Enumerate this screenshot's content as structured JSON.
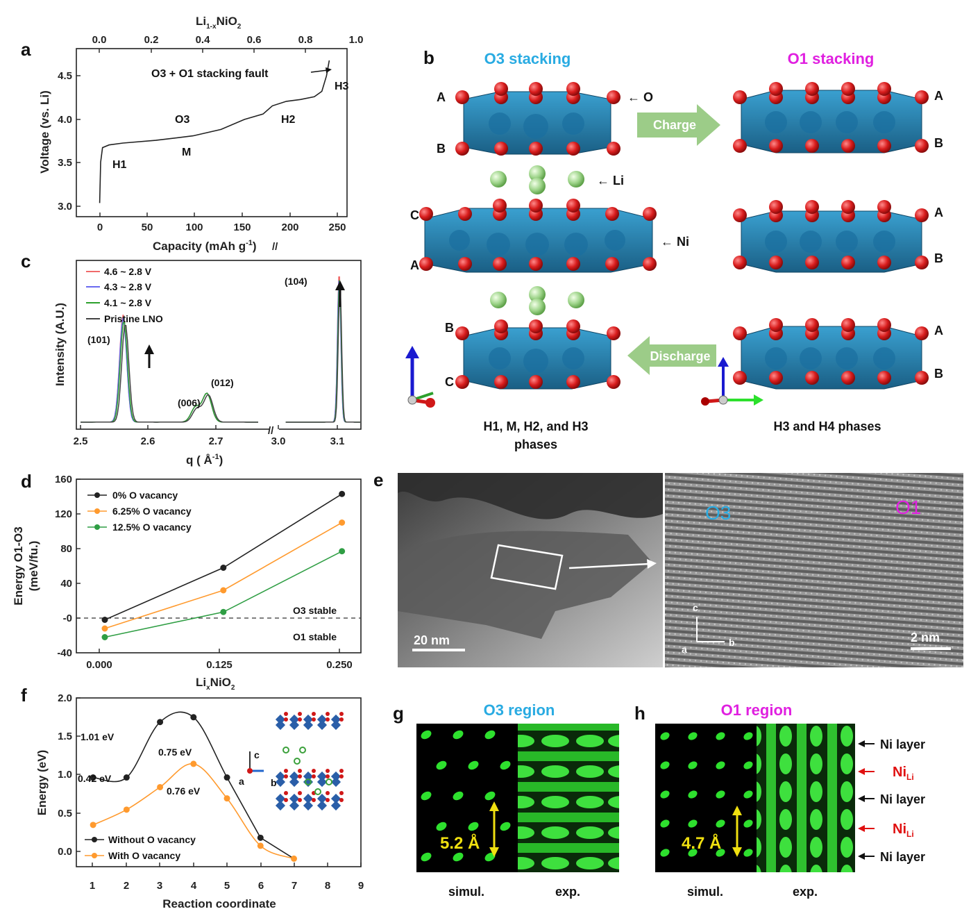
{
  "panels": {
    "a": {
      "label": "a",
      "top_axis_title": "Li",
      "top_axis_sub": "1-x",
      "top_axis_title_rest": "NiO",
      "top_axis_sub2": "2",
      "top_ticks": [
        "0.0",
        "0.2",
        "0.4",
        "0.6",
        "0.8",
        "1.0"
      ],
      "y_ticks": [
        "3.0",
        "3.5",
        "4.0",
        "4.5"
      ],
      "x_ticks": [
        "0",
        "50",
        "100",
        "150",
        "200",
        "250"
      ],
      "ylabel": "Voltage (vs. Li)",
      "xlabel": "Capacity (mAh g",
      "xlabel_sup": "-1",
      "xlabel_end": ")",
      "annotations": {
        "h1": "H1",
        "m": "M",
        "o3": "O3",
        "h2": "H2",
        "h3": "H3",
        "fault": "O3 + O1 stacking fault"
      }
    },
    "b": {
      "label": "b",
      "o3_title": "O3 stacking",
      "o1_title": "O1 stacking",
      "charge": "Charge",
      "discharge": "Discharge",
      "labels_o": "← O",
      "labels_li": "← Li",
      "labels_ni": "← Ni",
      "left_letters": [
        "A",
        "B",
        "C",
        "A",
        "B",
        "C"
      ],
      "right_letters": [
        "A",
        "B",
        "A",
        "B",
        "A",
        "B"
      ],
      "caption_left_1": "H1, M, H2, and H3",
      "caption_left_2": "phases",
      "caption_right": "H3 and H4 phases"
    },
    "c": {
      "label": "c",
      "legend": [
        "4.6 ~ 2.8 V",
        "4.3 ~ 2.8 V",
        "4.1 ~ 2.8 V",
        "Pristine LNO"
      ],
      "legend_colors": [
        "#f06a6a",
        "#6a6af0",
        "#2ca02c",
        "#444444"
      ],
      "peaks": [
        "(101)",
        "(006)",
        "(012)",
        "(104)"
      ],
      "x_ticks": [
        "2.5",
        "2.6",
        "2.7",
        "3.0",
        "3.1"
      ],
      "ylabel": "Intensity (A.U.)",
      "xlabel": "q ( Å",
      "xlabel_sup": "-1",
      "xlabel_end": ")"
    },
    "d": {
      "label": "d",
      "legend": [
        "0% O vacancy",
        "6.25% O vacancy",
        "12.5% O vacancy"
      ],
      "legend_colors": [
        "#222222",
        "#ff9a2e",
        "#2f9e44"
      ],
      "y_ticks": [
        "160",
        "120",
        "80",
        "40",
        "-0",
        "-40"
      ],
      "x_ticks": [
        "0.000",
        "0.125",
        "0.250"
      ],
      "ylabel1": "Energy O1-O3",
      "ylabel2": "(meV/fu.)",
      "xlabel": "Li",
      "xlabel_sub": "x",
      "xlabel_rest": "NiO",
      "xlabel_sub2": "2",
      "o3_stable": "O3 stable",
      "o1_stable": "O1 stable"
    },
    "e": {
      "label": "e",
      "scale_left": "20 nm",
      "scale_right": "2 nm",
      "o3": "O3",
      "o1": "O1",
      "axis_c": "c",
      "axis_a": "a",
      "axis_b": "b"
    },
    "f": {
      "label": "f",
      "y_ticks": [
        "2.0",
        "1.5",
        "1.0",
        "0.5",
        "0.0"
      ],
      "x_ticks": [
        "1",
        "2",
        "3",
        "4",
        "5",
        "6",
        "7",
        "8",
        "9"
      ],
      "ylabel": "Energy (eV)",
      "xlabel": "Reaction coordinate",
      "legend": [
        "Without O vacancy",
        "With O vacancy"
      ],
      "legend_colors": [
        "#222222",
        "#ff9a2e"
      ],
      "ann_101": "1.01 eV",
      "ann_075": "0.75 eV",
      "ann_042": "0.42 eV",
      "ann_076": "0.76 eV",
      "axis_c": "c",
      "axis_a": "a",
      "axis_b": "b"
    },
    "g": {
      "label": "g",
      "title": "O3 region",
      "spacing": "5.2 Å",
      "simul": "simul.",
      "exp": "exp."
    },
    "h": {
      "label": "h",
      "title": "O1 region",
      "spacing": "4.7 Å",
      "simul": "simul.",
      "exp": "exp.",
      "ni_layer": "Ni layer",
      "ni_li": "Ni",
      "ni_li_sub": "Li"
    }
  },
  "colors": {
    "o3_blue": "#29abe2",
    "o1_magenta": "#e020e0",
    "arrow_green": "#9ccc88"
  },
  "chart_data": [
    {
      "type": "line",
      "panel": "a",
      "xlabel": "Capacity (mAh g-1)",
      "ylabel": "Voltage (vs. Li)",
      "xlim": [
        -25,
        265
      ],
      "ylim": [
        2.9,
        4.75
      ],
      "series": [
        {
          "x": [
            0,
            1,
            3,
            10,
            25,
            60,
            100,
            130,
            155,
            175,
            185,
            200,
            215,
            230,
            238,
            243,
            246
          ],
          "y": [
            3.05,
            3.5,
            3.66,
            3.69,
            3.71,
            3.74,
            3.79,
            3.86,
            3.97,
            4.03,
            4.12,
            4.17,
            4.19,
            4.22,
            4.28,
            4.45,
            4.62
          ]
        }
      ]
    },
    {
      "type": "line",
      "panel": "c",
      "xlabel": "q (Å-1)",
      "ylabel": "Intensity (A.U.)",
      "x_ticks": [
        2.5,
        2.6,
        2.7,
        3.0,
        3.1
      ],
      "series": [
        {
          "name": "4.6 ~ 2.8 V",
          "peaks": [
            [
              2.56,
              0.72
            ],
            [
              2.662,
              0.1
            ],
            [
              2.678,
              0.19
            ],
            [
              3.095,
              1.0
            ]
          ]
        },
        {
          "name": "4.3 ~ 2.8 V",
          "peaks": [
            [
              2.56,
              0.7
            ],
            [
              2.662,
              0.1
            ],
            [
              2.678,
              0.19
            ],
            [
              3.095,
              0.97
            ]
          ]
        },
        {
          "name": "4.1 ~ 2.8 V",
          "peaks": [
            [
              2.561,
              0.68
            ],
            [
              2.662,
              0.1
            ],
            [
              2.678,
              0.19
            ],
            [
              3.096,
              0.95
            ]
          ]
        },
        {
          "name": "Pristine LNO",
          "peaks": [
            [
              2.563,
              0.66
            ],
            [
              2.664,
              0.09
            ],
            [
              2.68,
              0.18
            ],
            [
              3.097,
              0.92
            ]
          ]
        }
      ]
    },
    {
      "type": "line",
      "panel": "d",
      "x": [
        0.0,
        0.125,
        0.25
      ],
      "xlim": [
        -0.03,
        0.27
      ],
      "ylim": [
        -40,
        160
      ],
      "series": [
        {
          "name": "0% O vacancy",
          "values": [
            -2,
            58,
            143
          ]
        },
        {
          "name": "6.25% O vacancy",
          "values": [
            -12,
            32,
            110
          ]
        },
        {
          "name": "12.5% O vacancy",
          "values": [
            -22,
            7,
            77
          ]
        }
      ]
    },
    {
      "type": "line",
      "panel": "f",
      "x": [
        1,
        2,
        3,
        4,
        5,
        6,
        7
      ],
      "xlim": [
        0.5,
        9
      ],
      "ylim": [
        -0.1,
        2.0
      ],
      "series": [
        {
          "name": "Without O vacancy",
          "x": [
            1,
            2,
            3,
            4,
            5,
            6
          ],
          "values": [
            1.01,
            1.01,
            1.7,
            1.76,
            1.01,
            0.26
          ]
        },
        {
          "name": "With O vacancy",
          "x": [
            1,
            2,
            3,
            4,
            5,
            6,
            7
          ],
          "values": [
            0.42,
            0.61,
            0.89,
            1.18,
            0.75,
            0.16,
            0.0
          ]
        }
      ]
    }
  ]
}
